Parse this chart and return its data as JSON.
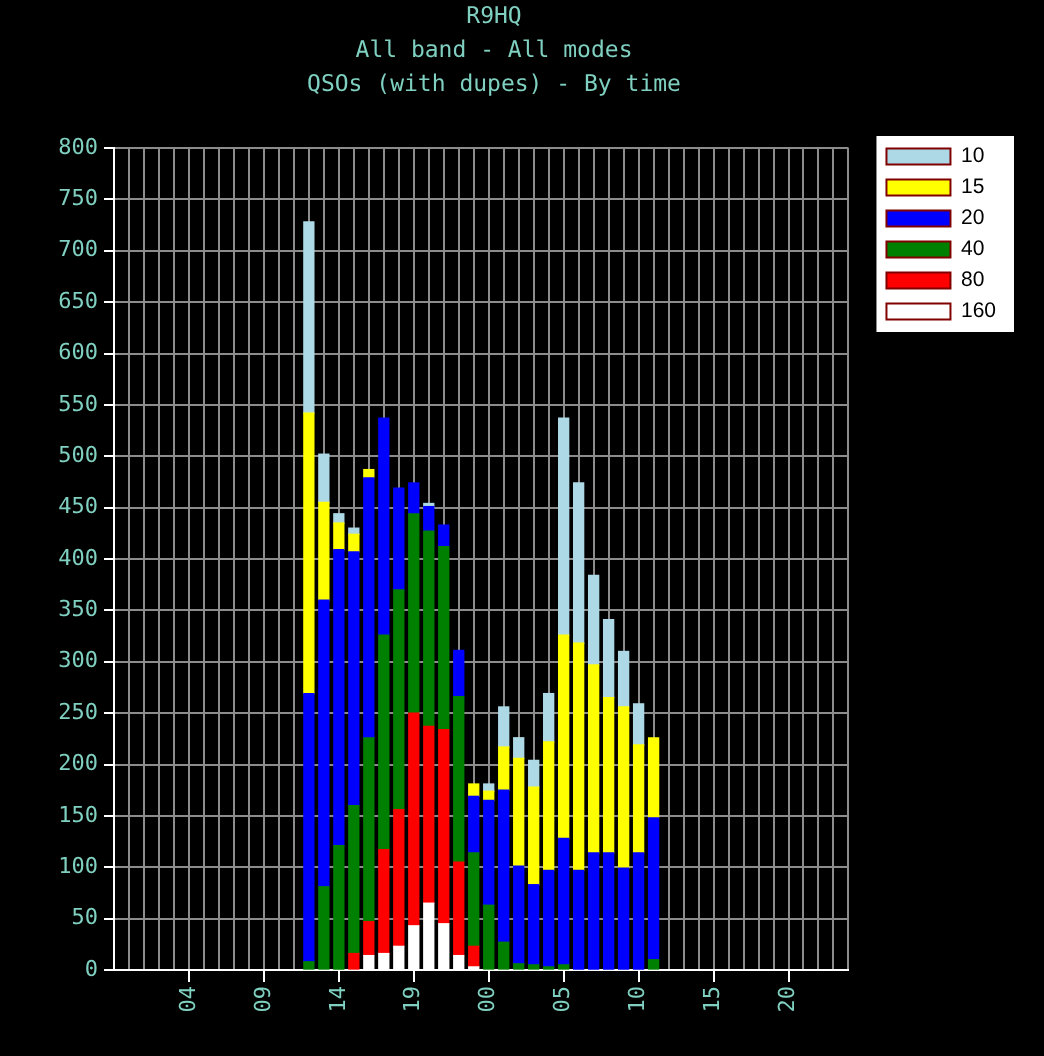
{
  "chart_data": {
    "type": "bar",
    "title": "R9HQ",
    "subtitle": "All band - All modes\nQSOs (with dupes) - By time",
    "categories": [
      null,
      null,
      null,
      null,
      null,
      "04",
      null,
      null,
      null,
      null,
      "09",
      null,
      null,
      null,
      null,
      "14",
      null,
      null,
      null,
      null,
      "19",
      null,
      null,
      null,
      null,
      "00",
      null,
      null,
      null,
      null,
      "05",
      null,
      null,
      null,
      null,
      "10",
      null,
      null,
      null,
      null,
      "15",
      null,
      null,
      null,
      null,
      "20",
      null,
      null,
      null,
      null
    ],
    "ylim": [
      0,
      800
    ],
    "yticks": [
      0,
      50,
      100,
      150,
      200,
      250,
      300,
      350,
      400,
      450,
      500,
      550,
      600,
      650,
      700,
      750,
      800
    ],
    "stacked": true,
    "grid": true,
    "legend": "top right",
    "series": [
      {
        "name": "160",
        "color": "#ffffff",
        "values": [
          null,
          null,
          null,
          null,
          null,
          null,
          null,
          null,
          null,
          null,
          null,
          null,
          null,
          null,
          null,
          null,
          null,
          14,
          16,
          23,
          43,
          65,
          45,
          14,
          3,
          null,
          null,
          null,
          null,
          null,
          null,
          null,
          null,
          null,
          null,
          null,
          null,
          null,
          null,
          null,
          null,
          null,
          null,
          null,
          null,
          null,
          null,
          null,
          null,
          null
        ]
      },
      {
        "name": "80",
        "color": "#ff0000",
        "values": [
          null,
          null,
          null,
          null,
          null,
          null,
          null,
          null,
          null,
          null,
          null,
          null,
          null,
          null,
          null,
          null,
          16,
          33,
          101,
          133,
          207,
          172,
          189,
          91,
          20,
          null,
          null,
          null,
          null,
          null,
          null,
          null,
          null,
          null,
          null,
          null,
          null,
          null,
          null,
          null,
          null,
          null,
          null,
          null,
          null,
          null,
          null,
          null,
          null,
          null
        ]
      },
      {
        "name": "40",
        "color": "#008000",
        "values": [
          null,
          null,
          null,
          null,
          null,
          null,
          null,
          null,
          null,
          null,
          null,
          null,
          null,
          8,
          81,
          121,
          144,
          179,
          209,
          214,
          194,
          190,
          178,
          161,
          91,
          63,
          27,
          6,
          5,
          3,
          5,
          null,
          null,
          null,
          null,
          null,
          10,
          null,
          null,
          null,
          null,
          null,
          null,
          null,
          null,
          null,
          null,
          null,
          null,
          null
        ]
      },
      {
        "name": "20",
        "color": "#0000ff",
        "values": [
          null,
          null,
          null,
          null,
          null,
          null,
          null,
          null,
          null,
          null,
          null,
          null,
          null,
          261,
          279,
          288,
          247,
          253,
          211,
          99,
          30,
          24,
          21,
          45,
          55,
          102,
          148,
          95,
          78,
          94,
          123,
          97,
          114,
          114,
          99,
          114,
          138,
          null,
          null,
          null,
          null,
          null,
          null,
          null,
          null,
          null,
          null,
          null,
          null,
          null
        ]
      },
      {
        "name": "15",
        "color": "#ffff00",
        "values": [
          null,
          null,
          null,
          null,
          null,
          null,
          null,
          null,
          null,
          null,
          null,
          null,
          null,
          273,
          95,
          26,
          17,
          8,
          null,
          null,
          null,
          null,
          null,
          null,
          12,
          9,
          42,
          105,
          95,
          125,
          198,
          221,
          183,
          151,
          157,
          105,
          78,
          null,
          null,
          null,
          null,
          null,
          null,
          null,
          null,
          null,
          null,
          null,
          null,
          null
        ]
      },
      {
        "name": "10",
        "color": "#add8e6",
        "values": [
          null,
          null,
          null,
          null,
          null,
          null,
          null,
          null,
          null,
          null,
          null,
          null,
          null,
          186,
          47,
          9,
          6,
          null,
          null,
          null,
          null,
          3,
          null,
          null,
          null,
          7,
          39,
          20,
          26,
          47,
          211,
          156,
          87,
          76,
          54,
          40,
          null,
          null,
          null,
          null,
          null,
          null,
          null,
          null,
          null,
          null,
          null,
          null,
          null,
          null
        ]
      }
    ]
  }
}
